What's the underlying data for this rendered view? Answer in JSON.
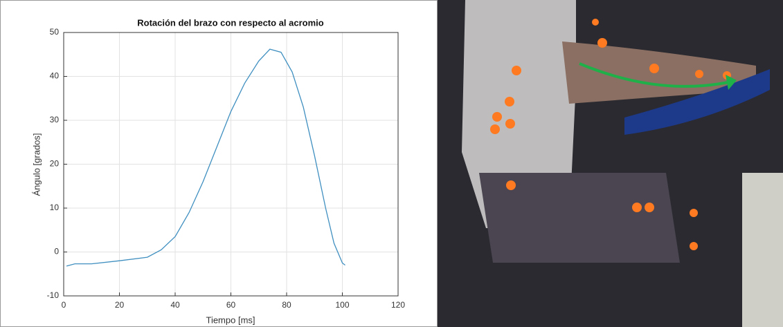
{
  "chart_data": {
    "type": "line",
    "title": "Rotación del brazo con respecto al acromio",
    "x_label": "Tiempo [ms]",
    "y_label": "Ángulo [grados]",
    "x": [
      1,
      4,
      10,
      20,
      30,
      35,
      40,
      45,
      50,
      55,
      60,
      65,
      70,
      74,
      78,
      82,
      86,
      90,
      94,
      97,
      100,
      101
    ],
    "series": [
      {
        "color": "#3f8fc0",
        "values": [
          -3.2,
          -2.7,
          -2.7,
          -2,
          -1.2,
          0.5,
          3.5,
          9,
          16,
          24,
          32,
          38.5,
          43.5,
          46.2,
          45.5,
          41,
          33,
          22,
          10,
          2,
          -2.5,
          -3
        ]
      }
    ],
    "xlim": [
      0,
      120
    ],
    "xticks": [
      0,
      20,
      40,
      60,
      80,
      100,
      120
    ],
    "ylim": [
      -10,
      50
    ],
    "yticks": [
      -10,
      0,
      10,
      20,
      30,
      40,
      50
    ],
    "grid": true
  }
}
